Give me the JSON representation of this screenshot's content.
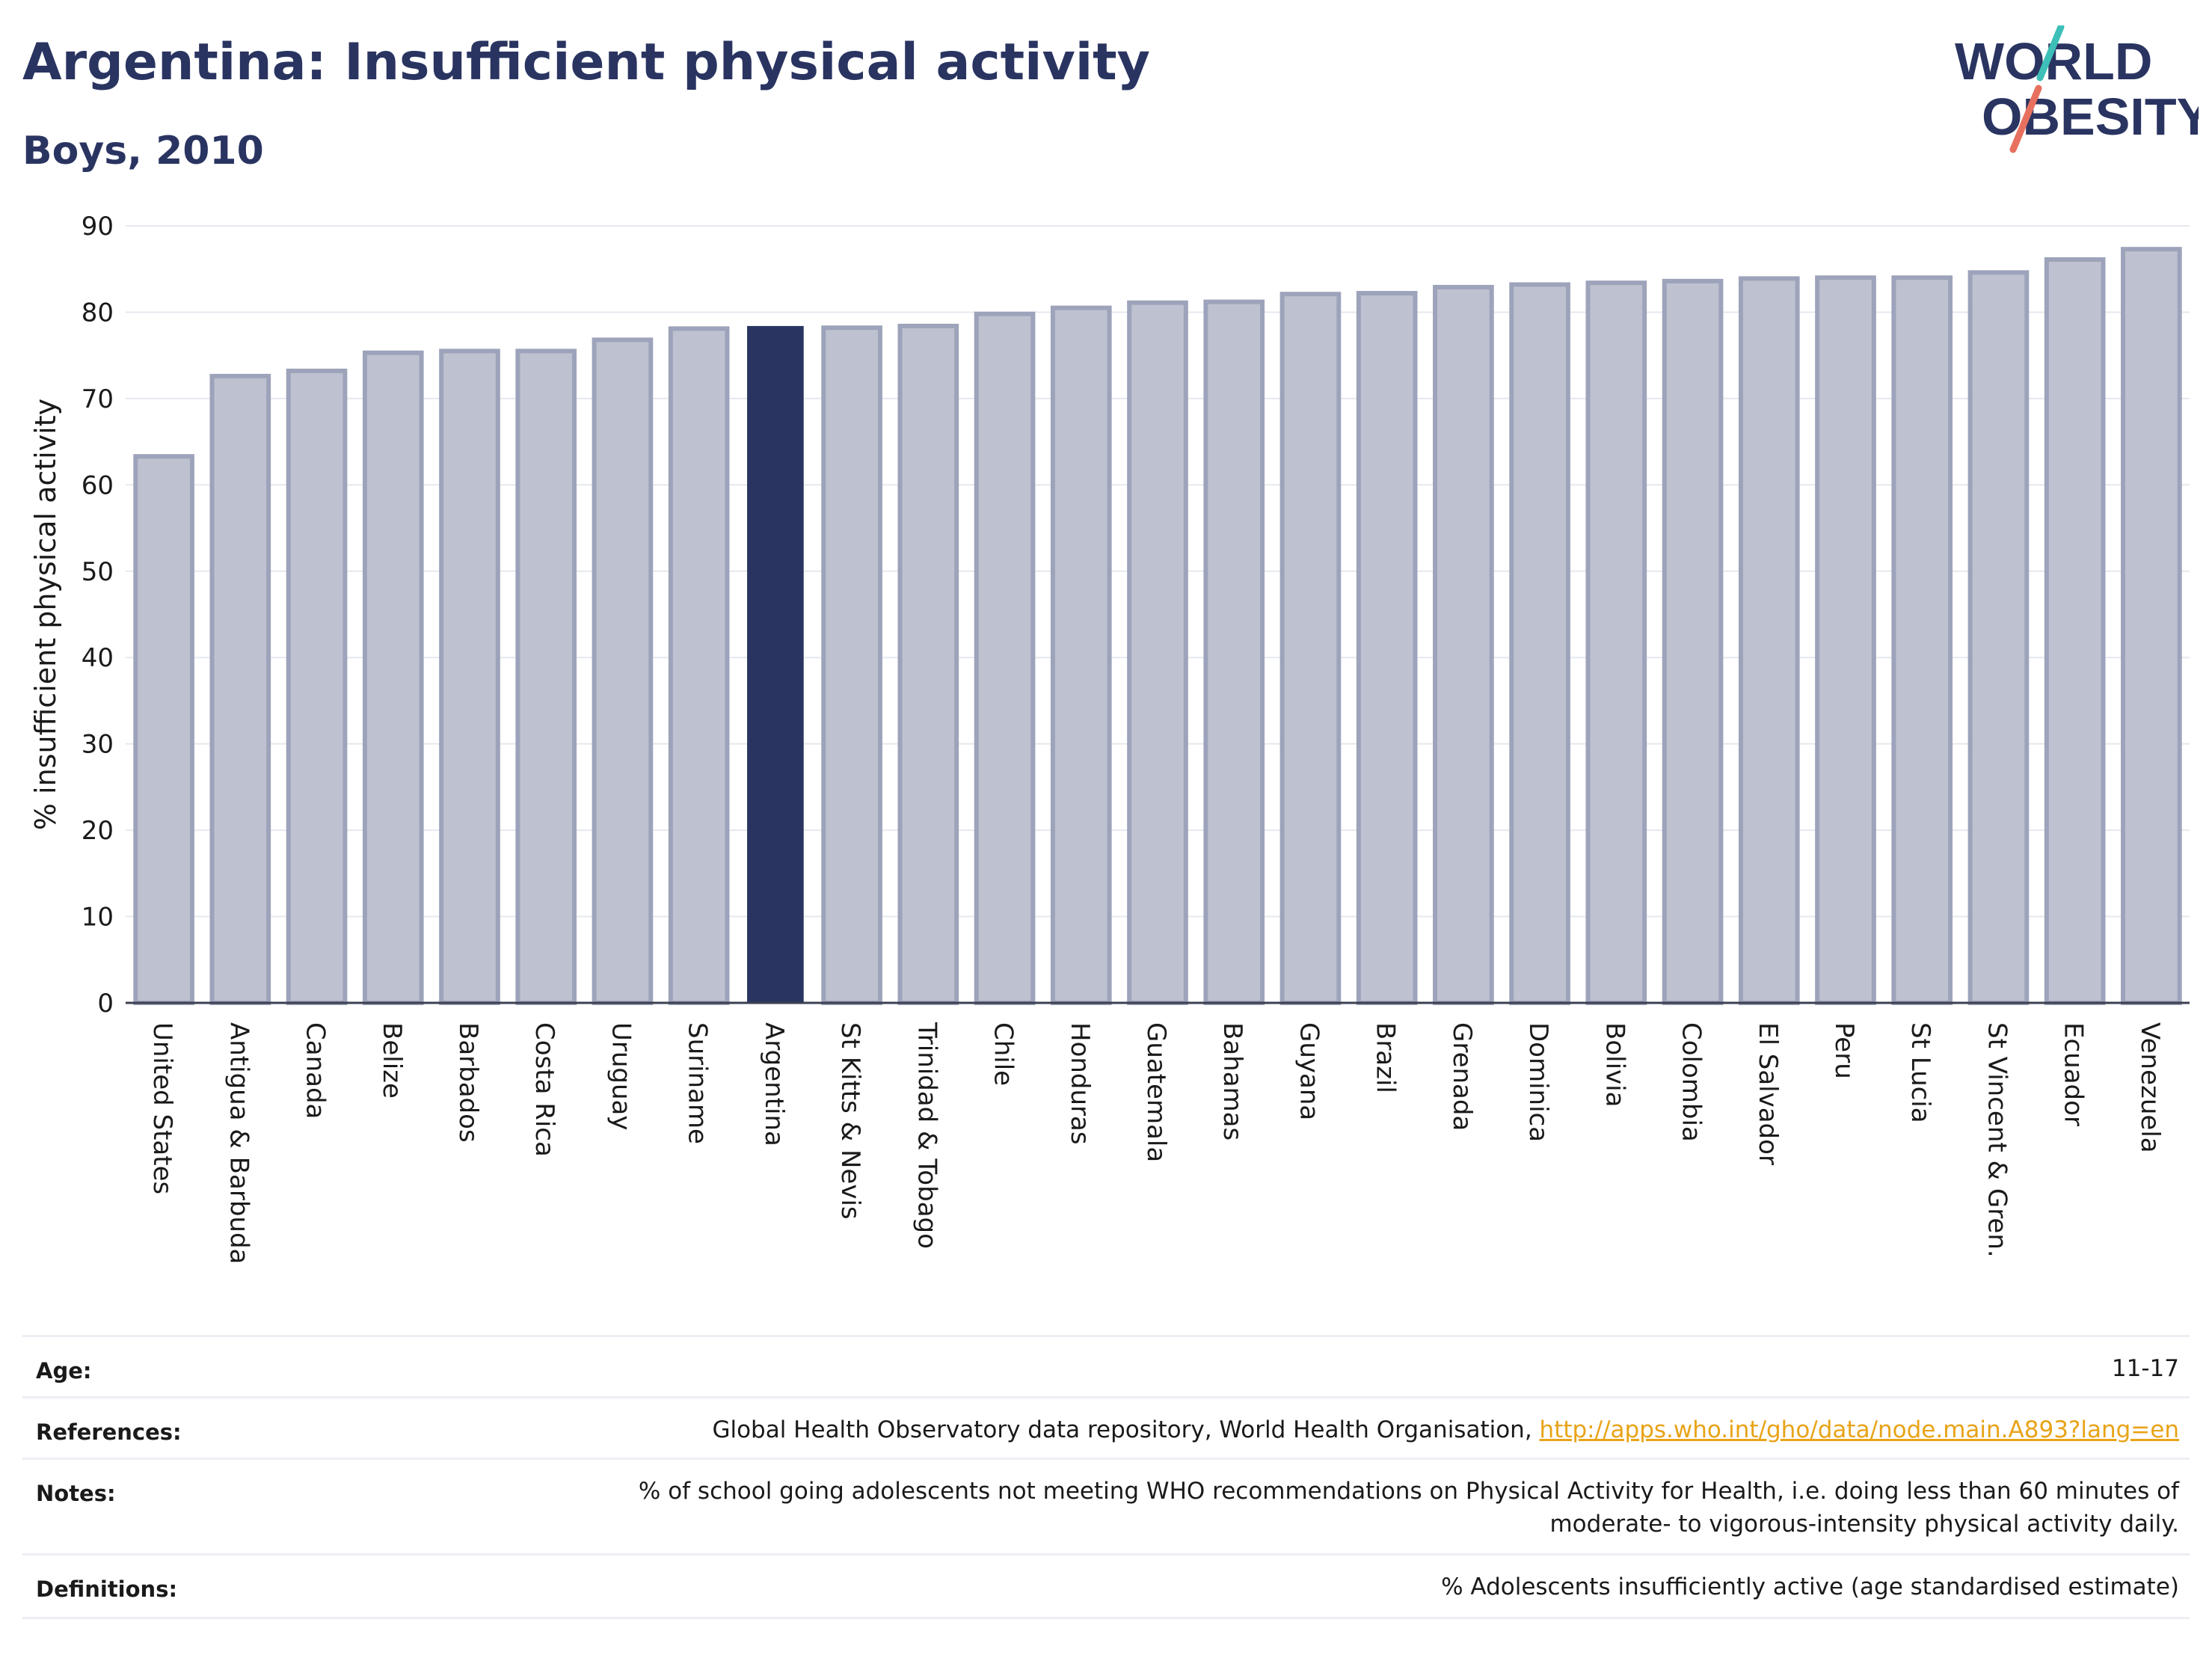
{
  "header": {
    "title": "Argentina: Insufficient physical activity",
    "subtitle": "Boys, 2010"
  },
  "logo": {
    "line1": "WORLD",
    "line2": "OBESITY",
    "accent_teal": "#3dbfb8",
    "accent_coral": "#e8705f"
  },
  "colors": {
    "highlight_bar": "#2a3461",
    "other_bar_fill": "#bec2d0",
    "other_bar_stroke": "#9da3ba"
  },
  "chart_data": {
    "type": "bar",
    "ylabel": "% insufficient physical activity",
    "xlabel": "",
    "ylim": [
      0,
      90
    ],
    "yticks": [
      0,
      10,
      20,
      30,
      40,
      50,
      60,
      70,
      80,
      90
    ],
    "grid": true,
    "highlight": "Argentina",
    "categories": [
      "United States",
      "Antigua & Barbuda",
      "Canada",
      "Belize",
      "Barbados",
      "Costa Rica",
      "Uruguay",
      "Suriname",
      "Argentina",
      "St Kitts & Nevis",
      "Trinidad & Tobago",
      "Chile",
      "Honduras",
      "Guatemala",
      "Bahamas",
      "Guyana",
      "Brazil",
      "Grenada",
      "Dominica",
      "Bolivia",
      "Colombia",
      "El Salvador",
      "Peru",
      "St Lucia",
      "St Vincent & Gren.",
      "Ecuador",
      "Venezuela"
    ],
    "values": [
      63.3,
      72.6,
      73.2,
      75.3,
      75.5,
      75.5,
      76.8,
      78.1,
      78.4,
      78.2,
      78.4,
      79.8,
      80.5,
      81.1,
      81.2,
      82.1,
      82.2,
      82.9,
      83.2,
      83.4,
      83.6,
      83.9,
      84.0,
      84.0,
      84.6,
      86.1,
      87.3
    ]
  },
  "footer": {
    "age_label": "Age:",
    "age_value": "11-17",
    "references_label": "References:",
    "references_text": "Global Health Observatory data repository, World Health Organisation, ",
    "references_link": "http://apps.who.int/gho/data/node.main.A893?lang=en",
    "notes_label": "Notes:",
    "notes_line1": "% of school going adolescents not meeting WHO recommendations on Physical Activity for Health, i.e. doing less than 60 minutes of",
    "notes_line2": "moderate- to vigorous-intensity physical activity daily.",
    "definitions_label": "Definitions:",
    "definitions_value": "% Adolescents insufficiently active (age standardised estimate)"
  }
}
